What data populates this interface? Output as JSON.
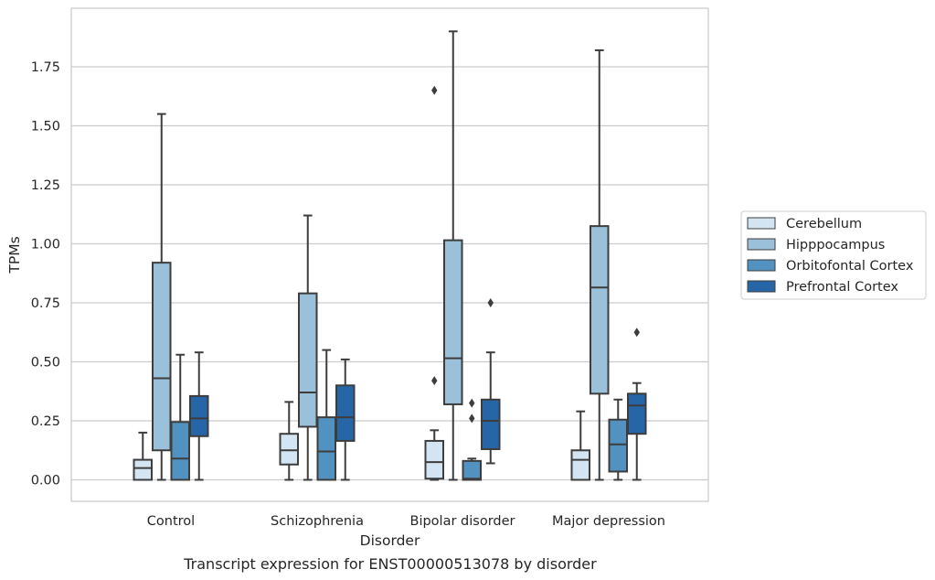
{
  "chart_data": {
    "type": "boxplot",
    "xlabel": "Disorder",
    "ylabel": "TPMs",
    "caption": "Transcript expression for ENST00000513078 by disorder",
    "ylim": [
      -0.09,
      1.99
    ],
    "yticks": [
      0.0,
      0.25,
      0.5,
      0.75,
      1.0,
      1.25,
      1.5,
      1.75
    ],
    "ytick_labels": [
      "0.00",
      "0.25",
      "0.50",
      "0.75",
      "1.00",
      "1.25",
      "1.50",
      "1.75"
    ],
    "grid": true,
    "legend_position": "right",
    "categories": [
      "Control",
      "Schizophrenia",
      "Bipolar disorder",
      "Major depression"
    ],
    "series": [
      {
        "name": "Cerebellum",
        "color": "#d3e4f3",
        "boxes": [
          {
            "whislo": 0.0,
            "q1": 0.0,
            "med": 0.05,
            "q3": 0.085,
            "whishi": 0.2,
            "fliers": []
          },
          {
            "whislo": 0.0,
            "q1": 0.065,
            "med": 0.125,
            "q3": 0.195,
            "whishi": 0.33,
            "fliers": []
          },
          {
            "whislo": 0.0,
            "q1": 0.005,
            "med": 0.075,
            "q3": 0.165,
            "whishi": 0.21,
            "fliers": [
              0.42,
              1.65
            ]
          },
          {
            "whislo": 0.0,
            "q1": 0.0,
            "med": 0.085,
            "q3": 0.125,
            "whishi": 0.29,
            "fliers": []
          }
        ]
      },
      {
        "name": "Hipppocampus",
        "color": "#9ac0da",
        "boxes": [
          {
            "whislo": 0.0,
            "q1": 0.125,
            "med": 0.43,
            "q3": 0.92,
            "whishi": 1.55,
            "fliers": []
          },
          {
            "whislo": 0.0,
            "q1": 0.225,
            "med": 0.37,
            "q3": 0.79,
            "whishi": 1.12,
            "fliers": []
          },
          {
            "whislo": 0.0,
            "q1": 0.32,
            "med": 0.515,
            "q3": 1.015,
            "whishi": 1.9,
            "fliers": []
          },
          {
            "whislo": 0.0,
            "q1": 0.365,
            "med": 0.815,
            "q3": 1.075,
            "whishi": 1.82,
            "fliers": []
          }
        ]
      },
      {
        "name": "Orbitofontal Cortex",
        "color": "#5192c0",
        "boxes": [
          {
            "whislo": 0.0,
            "q1": 0.0,
            "med": 0.09,
            "q3": 0.245,
            "whishi": 0.53,
            "fliers": []
          },
          {
            "whislo": 0.0,
            "q1": 0.0,
            "med": 0.12,
            "q3": 0.265,
            "whishi": 0.55,
            "fliers": []
          },
          {
            "whislo": 0.0,
            "q1": 0.0,
            "med": 0.005,
            "q3": 0.08,
            "whishi": 0.09,
            "fliers": [
              0.26,
              0.325
            ]
          },
          {
            "whislo": 0.0,
            "q1": 0.035,
            "med": 0.15,
            "q3": 0.255,
            "whishi": 0.34,
            "fliers": []
          }
        ]
      },
      {
        "name": "Prefrontal Cortex",
        "color": "#2666a6",
        "boxes": [
          {
            "whislo": 0.0,
            "q1": 0.185,
            "med": 0.26,
            "q3": 0.355,
            "whishi": 0.54,
            "fliers": []
          },
          {
            "whislo": 0.0,
            "q1": 0.165,
            "med": 0.265,
            "q3": 0.4,
            "whishi": 0.51,
            "fliers": []
          },
          {
            "whislo": 0.07,
            "q1": 0.13,
            "med": 0.25,
            "q3": 0.34,
            "whishi": 0.54,
            "fliers": [
              0.75
            ]
          },
          {
            "whislo": 0.0,
            "q1": 0.195,
            "med": 0.315,
            "q3": 0.365,
            "whishi": 0.41,
            "fliers": [
              0.625
            ]
          }
        ]
      }
    ]
  }
}
